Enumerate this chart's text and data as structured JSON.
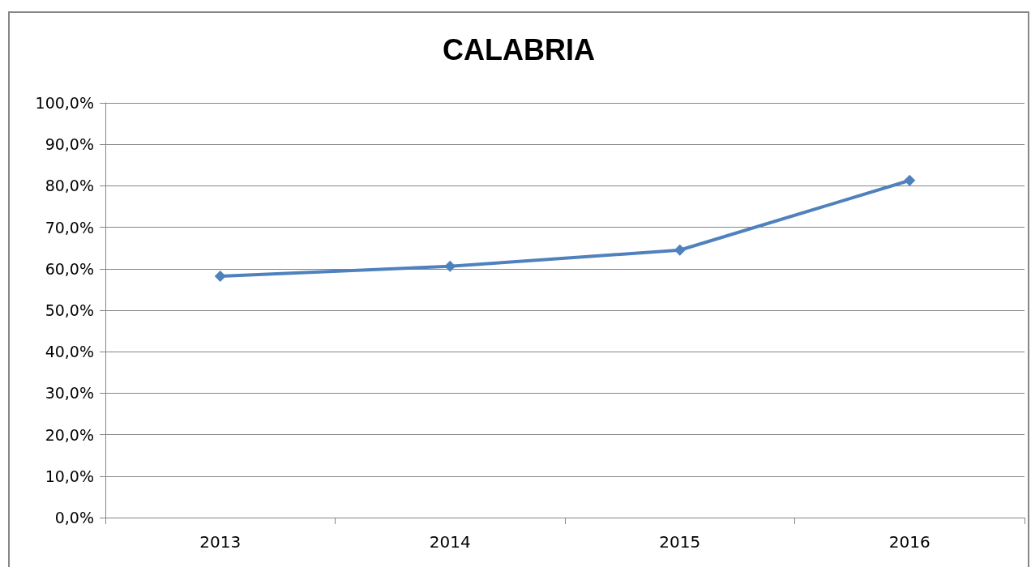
{
  "chart_data": {
    "type": "line",
    "title": "CALABRIA",
    "categories": [
      "2013",
      "2014",
      "2015",
      "2016"
    ],
    "values": [
      58.2,
      60.6,
      64.5,
      81.3
    ],
    "color": "#4f81bd",
    "marker": "diamond",
    "grid": "y",
    "ylim": [
      0,
      100
    ],
    "yticks": [
      {
        "value": 0,
        "label": "0,0%"
      },
      {
        "value": 10,
        "label": "10,0%"
      },
      {
        "value": 20,
        "label": "20,0%"
      },
      {
        "value": 30,
        "label": "30,0%"
      },
      {
        "value": 40,
        "label": "40,0%"
      },
      {
        "value": 50,
        "label": "50,0%"
      },
      {
        "value": 60,
        "label": "60,0%"
      },
      {
        "value": 70,
        "label": "70,0%"
      },
      {
        "value": 80,
        "label": "80,0%"
      },
      {
        "value": 90,
        "label": "90,0%"
      },
      {
        "value": 100,
        "label": "100,0%"
      }
    ]
  }
}
